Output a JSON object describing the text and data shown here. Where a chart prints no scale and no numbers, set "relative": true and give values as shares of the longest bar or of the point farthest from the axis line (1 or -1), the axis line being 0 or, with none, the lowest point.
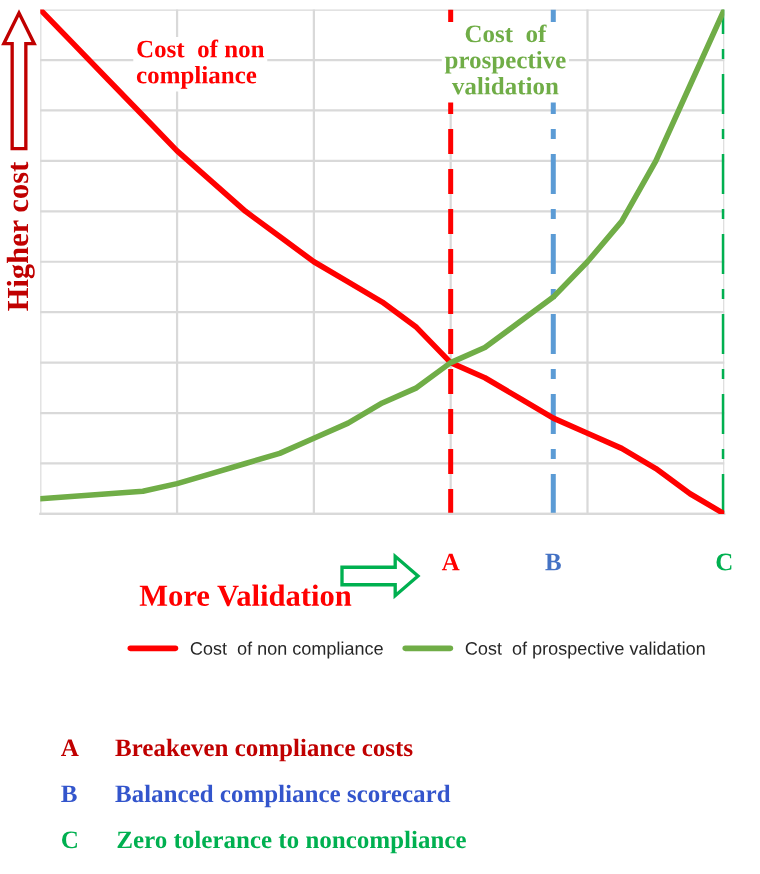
{
  "chart_data": {
    "type": "line",
    "relative": true,
    "tick_labels": "x",
    "grid": true,
    "legend": "bottom",
    "xlabel": "More Validation",
    "ylabel": "Higher cost",
    "categories": [
      null,
      null,
      null,
      null,
      null,
      null,
      null,
      null,
      null,
      null,
      null,
      null,
      "A",
      null,
      null,
      "B",
      null,
      null,
      null,
      null,
      "C"
    ],
    "series": [
      {
        "name": "Cost  of non compliance",
        "color": "#ff0000",
        "values": [
          1.0,
          0.93,
          0.86,
          0.79,
          0.72,
          0.66,
          0.6,
          0.55,
          0.5,
          0.46,
          0.42,
          0.37,
          0.3,
          0.27,
          0.23,
          0.19,
          0.16,
          0.13,
          0.09,
          0.04,
          0
        ]
      },
      {
        "name": "Cost  of prospective validation",
        "color": "#70ad47",
        "values": [
          0.03,
          0.035,
          0.04,
          0.045,
          0.06,
          0.08,
          0.1,
          0.12,
          0.15,
          0.18,
          0.22,
          0.25,
          0.3,
          0.33,
          0.38,
          0.43,
          0.5,
          0.58,
          0.7,
          0.85,
          1.0
        ]
      }
    ],
    "ref_lines": [
      {
        "axis": "x",
        "value": "A",
        "color": "#ff0000",
        "line_style": "dashed"
      },
      {
        "axis": "x",
        "value": "B",
        "color": "#5b9bd5",
        "line_style": "dashdot"
      },
      {
        "axis": "x",
        "value": "C",
        "color": "#00b050",
        "line_style": "dashdot"
      }
    ],
    "annotations": [
      "Cost  of non\ncompliance",
      "Cost  of\nprospective\nvalidation",
      "A      Breakeven compliance costs",
      "B      Balanced compliance scorecard",
      "C      Zero tolerance to noncompliance"
    ]
  }
}
